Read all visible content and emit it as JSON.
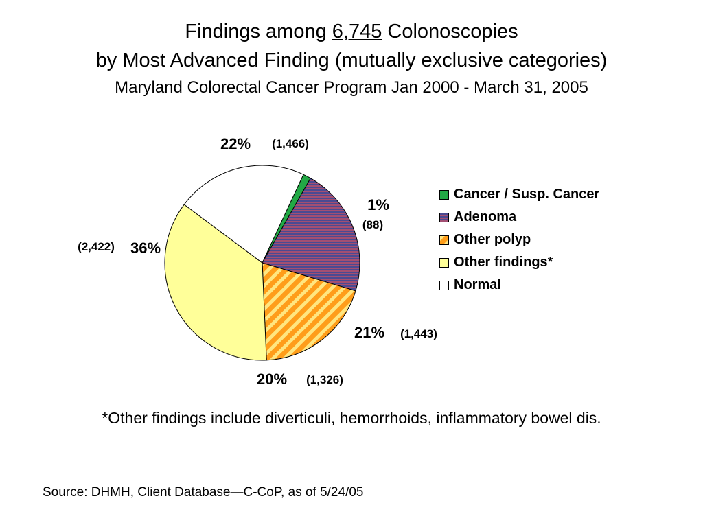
{
  "title": {
    "line1_prefix": "Findings among ",
    "line1_number": "6,745",
    "line1_suffix": " Colonoscopies",
    "line2": "by Most Advanced Finding (mutually exclusive categories)",
    "line3": "Maryland Colorectal Cancer Program Jan 2000 - March 31, 2005"
  },
  "chart_data": {
    "type": "pie",
    "total": 6745,
    "start_angle_deg": 65,
    "direction": "clockwise",
    "slices": [
      {
        "label": "Cancer / Susp. Cancer",
        "count": 88,
        "percent_label": "1%",
        "count_label": "(88)",
        "color": "#22a845",
        "pattern": "solid"
      },
      {
        "label": "Adenoma",
        "count": 1443,
        "percent_label": "21%",
        "count_label": "(1,443)",
        "color": "#7b3a5e",
        "pattern": "horizontal-stripes"
      },
      {
        "label": "Other polyp",
        "count": 1326,
        "percent_label": "20%",
        "count_label": "(1,326)",
        "color": "#ff9d1a",
        "pattern": "diagonal-stripes"
      },
      {
        "label": "Other findings*",
        "count": 2422,
        "percent_label": "36%",
        "count_label": "(2,422)",
        "color": "#ffff99",
        "pattern": "solid"
      },
      {
        "label": "Normal",
        "count": 1466,
        "percent_label": "22%",
        "count_label": "(1,466)",
        "color": "#ffffff",
        "pattern": "solid"
      }
    ],
    "legend_position": "right"
  },
  "footnote": "*Other findings include diverticuli, hemorrhoids, inflammatory bowel dis.",
  "source": "Source:  DHMH, Client Database—C-CoP, as of 5/24/05"
}
